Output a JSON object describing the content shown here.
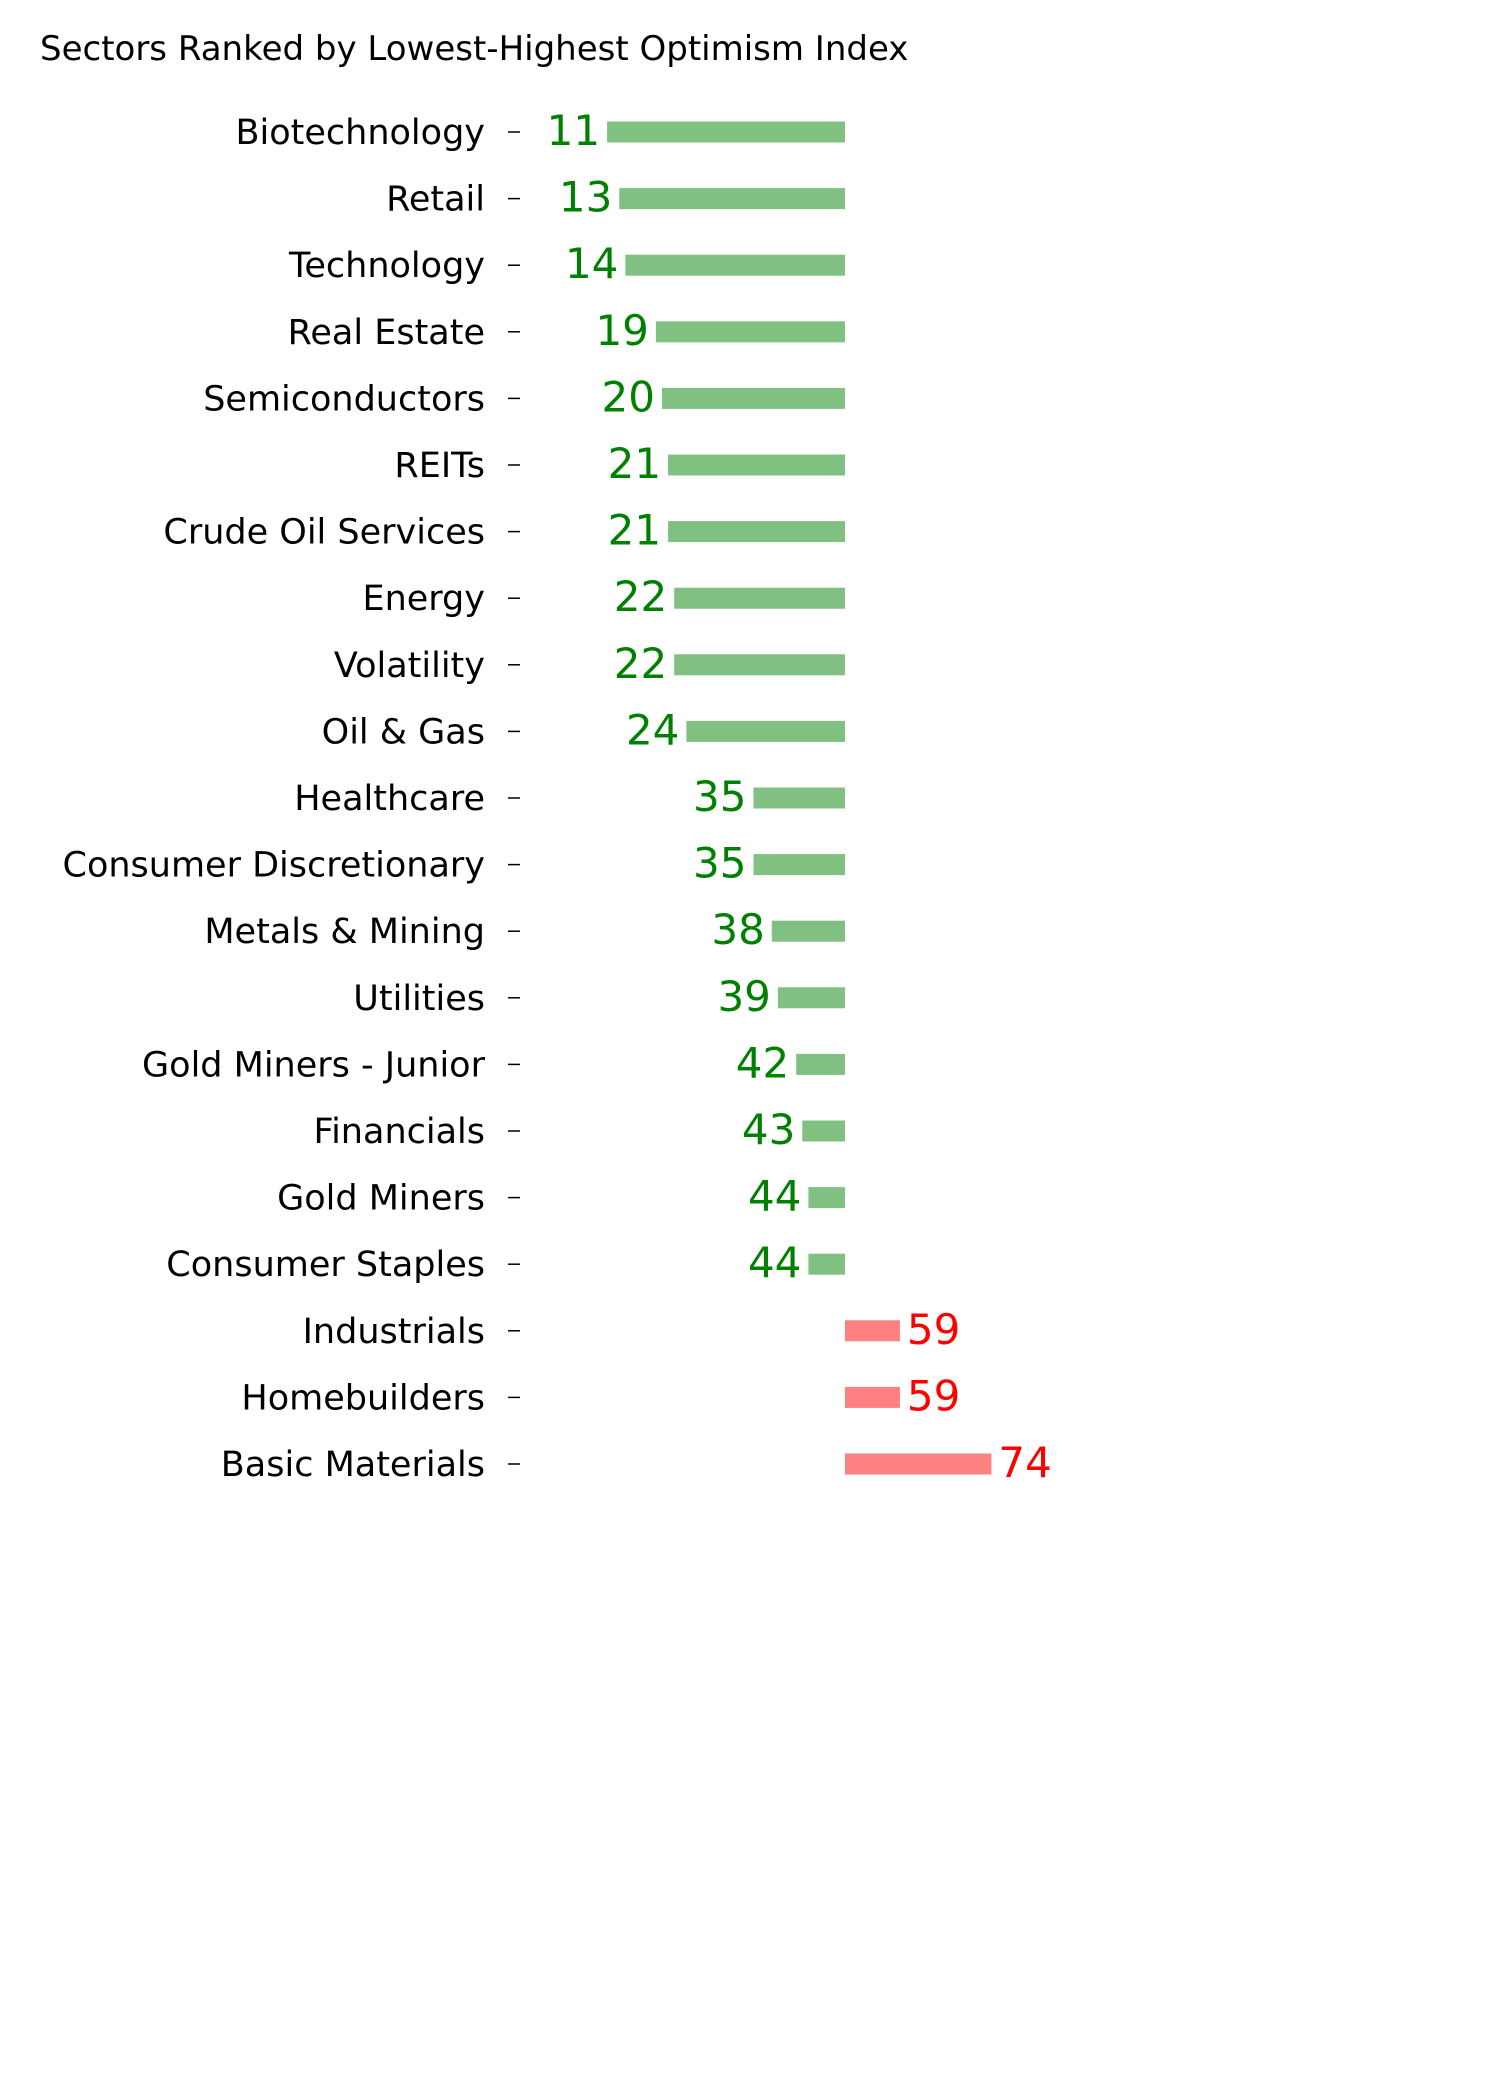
{
  "chart_data": {
    "type": "bar",
    "orientation": "horizontal-diverging",
    "title": "Sectors Ranked by Lowest-Highest Optimism Index",
    "xlabel": "",
    "ylabel": "",
    "baseline": 50,
    "categories": [
      "Biotechnology",
      "Retail",
      "Technology",
      "Real Estate",
      "Semiconductors",
      "REITs",
      "Crude Oil Services",
      "Energy",
      "Volatility",
      "Oil & Gas",
      "Healthcare",
      "Consumer Discretionary",
      "Metals & Mining",
      "Utilities",
      "Gold Miners - Junior",
      "Financials",
      "Gold Miners",
      "Consumer Staples",
      "Industrials",
      "Homebuilders",
      "Basic Materials"
    ],
    "values": [
      11,
      13,
      14,
      19,
      20,
      21,
      21,
      22,
      22,
      24,
      35,
      35,
      38,
      39,
      42,
      43,
      44,
      44,
      59,
      59,
      74
    ],
    "value_labels": [
      "11",
      "13",
      "14",
      "19",
      "20",
      "21",
      "21",
      "22",
      "22",
      "24",
      "35",
      "35",
      "38",
      "39",
      "42",
      "43",
      "44",
      "44",
      "59",
      "59",
      "74"
    ],
    "grid": false,
    "legend": "none",
    "colors": {
      "below_bar": "#80c080",
      "below_text": "#008000",
      "above_bar": "#ff8080",
      "above_text": "#ff0000"
    }
  }
}
